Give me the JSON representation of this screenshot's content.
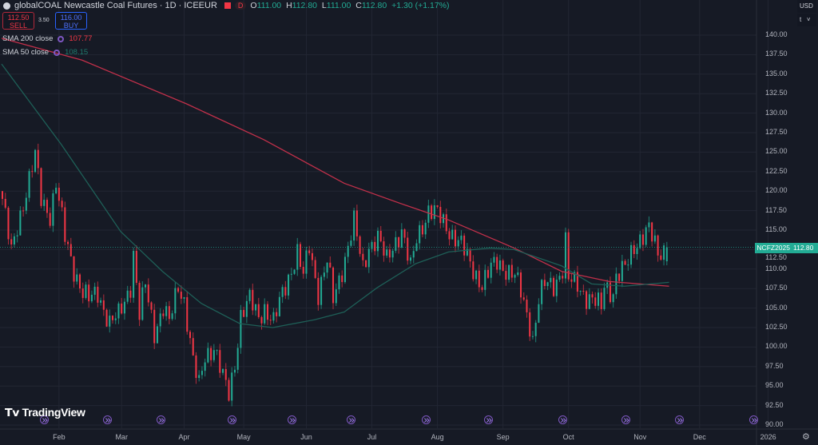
{
  "header": {
    "title": "globalCOAL Newcastle Coal Futures · 1D · ICEEUR",
    "marker": "D",
    "o_label": "O",
    "o": "111.00",
    "h_label": "H",
    "h": "112.80",
    "l_label": "L",
    "l": "111.00",
    "c_label": "C",
    "c": "112.80",
    "change": "+1.30 (+1.17%)"
  },
  "trade": {
    "sell_price": "112.50",
    "sell_label": "SELL",
    "spread": "3.50",
    "buy_price": "116.00",
    "buy_label": "BUY"
  },
  "indicators": [
    {
      "name": "SMA 200 close",
      "value": "107.77",
      "color": "#f23645"
    },
    {
      "name": "SMA 50 close",
      "value": "108.15",
      "color": "#22ab94"
    }
  ],
  "currency": "USD",
  "unit": "t",
  "symbol_tag": "NCFZ2025",
  "last_price": "112.80",
  "branding": "TradingView",
  "colors": {
    "up": "#22ab94",
    "down": "#f23645",
    "sma200": "#c2304a",
    "sma50": "#1e5f57",
    "bg": "#161a25",
    "grid": "#222633"
  },
  "chart_data": {
    "type": "candlestick",
    "title": "globalCOAL Newcastle Coal Futures · 1D · ICEEUR",
    "ylim": [
      90,
      142
    ],
    "y_ticks": [
      "140.00",
      "137.50",
      "135.00",
      "132.50",
      "130.00",
      "127.50",
      "125.00",
      "122.50",
      "120.00",
      "117.50",
      "115.00",
      "112.50",
      "110.00",
      "107.50",
      "105.00",
      "102.50",
      "100.00",
      "97.50",
      "95.00",
      "92.50",
      "90.00"
    ],
    "x_ticks": [
      {
        "label": "Feb",
        "day": 19
      },
      {
        "label": "Mar",
        "day": 40
      },
      {
        "label": "Apr",
        "day": 61
      },
      {
        "label": "May",
        "day": 81
      },
      {
        "label": "Jun",
        "day": 102
      },
      {
        "label": "Jul",
        "day": 124
      },
      {
        "label": "Aug",
        "day": 146
      },
      {
        "label": "Sep",
        "day": 168
      },
      {
        "label": "Oct",
        "day": 190
      },
      {
        "label": "Nov",
        "day": 214
      },
      {
        "label": "Dec",
        "day": 234
      },
      {
        "label": "2026",
        "day": 257
      }
    ],
    "close_path": [
      [
        0,
        119
      ],
      [
        3,
        112
      ],
      [
        5,
        115.5
      ],
      [
        11,
        124.5
      ],
      [
        13,
        119
      ],
      [
        16,
        117
      ],
      [
        18,
        121
      ],
      [
        21,
        114
      ],
      [
        24,
        110
      ],
      [
        27,
        107
      ],
      [
        29,
        106
      ],
      [
        32,
        107
      ],
      [
        36,
        103
      ],
      [
        39,
        104
      ],
      [
        43,
        108
      ],
      [
        44,
        112
      ],
      [
        46,
        104
      ],
      [
        48,
        108
      ],
      [
        51,
        102
      ],
      [
        54,
        105
      ],
      [
        56,
        103
      ],
      [
        59,
        108
      ],
      [
        61,
        106
      ],
      [
        64,
        98
      ],
      [
        66,
        95
      ],
      [
        68,
        99
      ],
      [
        71,
        100
      ],
      [
        74,
        96
      ],
      [
        76,
        94
      ],
      [
        78,
        98
      ],
      [
        80,
        104
      ],
      [
        83,
        106
      ],
      [
        86,
        104
      ],
      [
        88,
        105
      ],
      [
        91,
        103
      ],
      [
        94,
        107
      ],
      [
        99,
        112
      ],
      [
        101,
        109
      ],
      [
        103,
        113
      ],
      [
        106,
        107
      ],
      [
        109,
        111
      ],
      [
        111,
        106
      ],
      [
        114,
        110
      ],
      [
        118,
        116
      ],
      [
        121,
        110
      ],
      [
        123,
        113
      ],
      [
        126,
        114
      ],
      [
        129,
        111
      ],
      [
        131,
        113
      ],
      [
        134,
        115
      ],
      [
        137,
        110
      ],
      [
        139,
        114
      ],
      [
        143,
        117.5
      ],
      [
        146,
        117
      ],
      [
        150,
        115
      ],
      [
        154,
        113
      ],
      [
        158,
        110
      ],
      [
        161,
        108
      ],
      [
        164,
        110
      ],
      [
        166,
        111
      ],
      [
        169,
        110
      ],
      [
        172,
        109
      ],
      [
        174,
        107
      ],
      [
        177,
        103
      ],
      [
        178,
        101
      ],
      [
        180,
        106
      ],
      [
        182,
        108
      ],
      [
        185,
        108
      ],
      [
        188,
        110
      ],
      [
        189,
        113.5
      ],
      [
        190,
        108.5
      ],
      [
        193,
        108
      ],
      [
        196,
        106.5
      ],
      [
        198,
        106
      ],
      [
        201,
        105
      ],
      [
        202,
        108
      ],
      [
        205,
        107
      ],
      [
        206,
        109
      ],
      [
        209,
        110
      ],
      [
        212,
        113
      ],
      [
        214,
        114
      ],
      [
        217,
        115
      ],
      [
        220,
        112
      ],
      [
        223,
        112.8
      ]
    ],
    "last_close": 112.8,
    "series": [
      {
        "name": "SMA 200 close",
        "points": [
          [
            0,
            139.6
          ],
          [
            27,
            136.8
          ],
          [
            62,
            131.2
          ],
          [
            88,
            126.6
          ],
          [
            115,
            121
          ],
          [
            134,
            118.4
          ],
          [
            150,
            116.3
          ],
          [
            172,
            112.7
          ],
          [
            188,
            109.7
          ],
          [
            204,
            108.4
          ],
          [
            224,
            107.8
          ]
        ]
      },
      {
        "name": "SMA 50 close",
        "points": [
          [
            0,
            136.3
          ],
          [
            20,
            126
          ],
          [
            40,
            114.8
          ],
          [
            54,
            109.7
          ],
          [
            67,
            105.6
          ],
          [
            80,
            103
          ],
          [
            91,
            102.5
          ],
          [
            105,
            103.5
          ],
          [
            115,
            104.5
          ],
          [
            126,
            107.6
          ],
          [
            139,
            110.7
          ],
          [
            150,
            112.2
          ],
          [
            164,
            112.7
          ],
          [
            172,
            112.5
          ],
          [
            188,
            110.4
          ],
          [
            198,
            108.1
          ],
          [
            209,
            107.8
          ],
          [
            224,
            108.3
          ]
        ]
      }
    ],
    "event_days": [
      14,
      35,
      53,
      77,
      97,
      117,
      142,
      163,
      188,
      209,
      227,
      252
    ]
  }
}
